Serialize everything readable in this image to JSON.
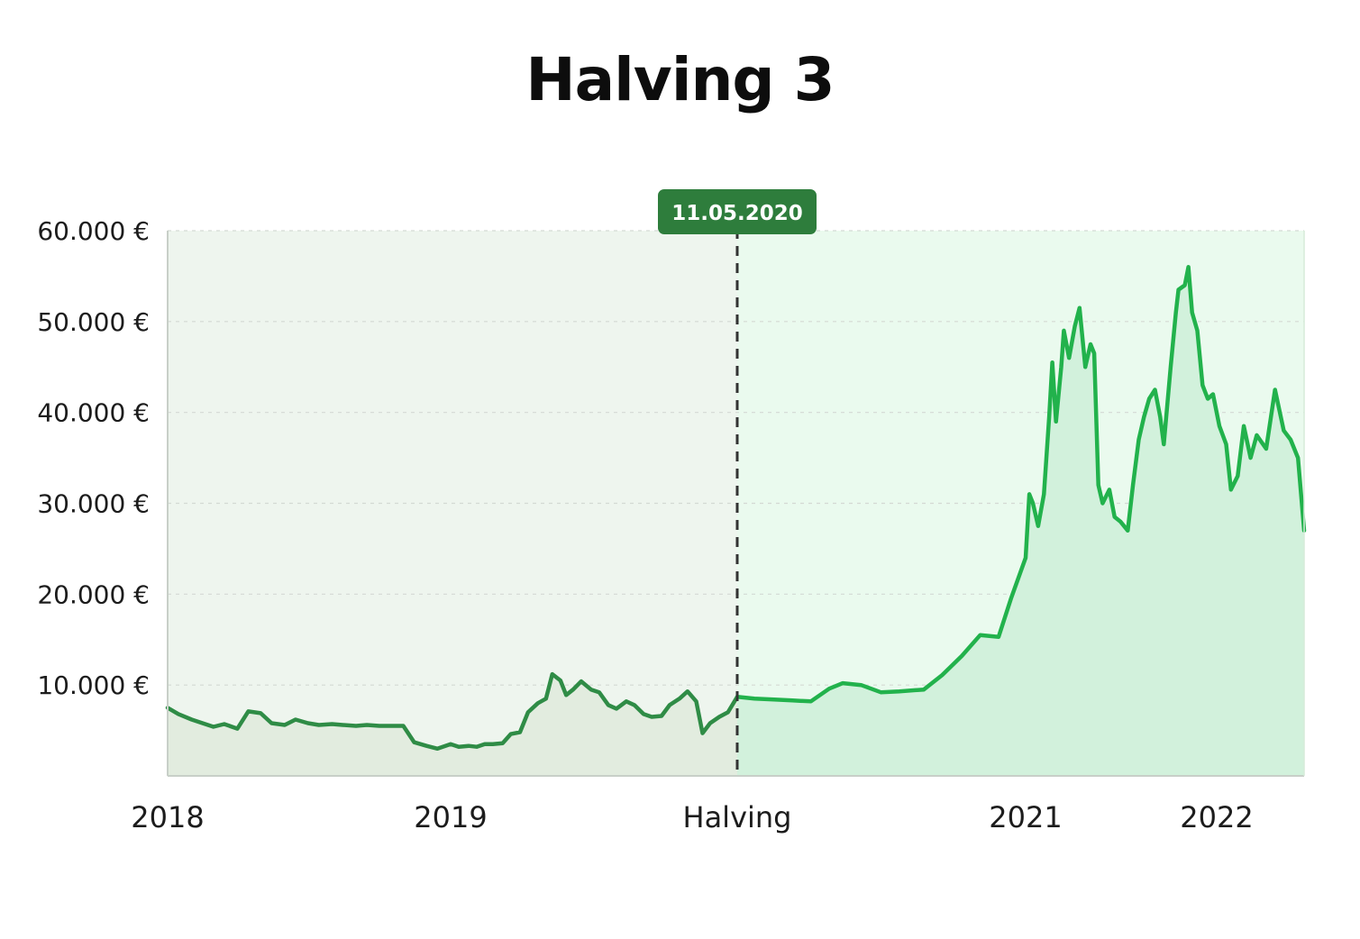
{
  "title": "Halving 3",
  "chart_data": {
    "type": "area",
    "title": "Halving 3",
    "xlabel": "",
    "ylabel": "",
    "ylim": [
      0,
      60000
    ],
    "y_ticks": [
      {
        "value": 10000,
        "label": "10.000 €"
      },
      {
        "value": 20000,
        "label": "20.000 €"
      },
      {
        "value": 30000,
        "label": "30.000 €"
      },
      {
        "value": 40000,
        "label": "40.000 €"
      },
      {
        "value": 50000,
        "label": "50.000 €"
      },
      {
        "value": 60000,
        "label": "60.000 €"
      }
    ],
    "x_ticks": [
      {
        "date": "2018-01-01",
        "label": "2018"
      },
      {
        "date": "2019-01-01",
        "label": "2019"
      },
      {
        "date": "2020-05-11",
        "label": "Halving"
      },
      {
        "date": "2021-01-01",
        "label": "2021"
      },
      {
        "date": "2022-01-01",
        "label": "2022"
      }
    ],
    "grid": true,
    "marker": {
      "date": "2020-05-11",
      "label": "11.05.2020"
    },
    "colors": {
      "before_line": "#2f8c46",
      "before_fill": "#e2ecdf",
      "before_bg": "#eef5ee",
      "after_line": "#22b24c",
      "after_fill": "#d2f1dc",
      "after_bg": "#eafaee",
      "marker_badge": "#2e7d3c",
      "grid": "#d4d9d4",
      "axis": "#c8cfc8"
    },
    "series": [
      {
        "values": [
          [
            "2018-01-01",
            7500
          ],
          [
            "2018-01-15",
            6800
          ],
          [
            "2018-02-01",
            6200
          ],
          [
            "2018-02-15",
            5800
          ],
          [
            "2018-03-01",
            5400
          ],
          [
            "2018-03-15",
            5700
          ],
          [
            "2018-04-01",
            5200
          ],
          [
            "2018-04-15",
            7100
          ],
          [
            "2018-05-01",
            6900
          ],
          [
            "2018-05-15",
            5800
          ],
          [
            "2018-06-01",
            5600
          ],
          [
            "2018-06-15",
            6200
          ],
          [
            "2018-07-01",
            5800
          ],
          [
            "2018-07-15",
            5600
          ],
          [
            "2018-08-01",
            5700
          ],
          [
            "2018-08-15",
            5600
          ],
          [
            "2018-09-01",
            5500
          ],
          [
            "2018-09-15",
            5600
          ],
          [
            "2018-10-01",
            5500
          ],
          [
            "2018-10-15",
            5500
          ],
          [
            "2018-11-01",
            5500
          ],
          [
            "2018-11-15",
            3700
          ],
          [
            "2018-12-01",
            3300
          ],
          [
            "2018-12-15",
            3000
          ],
          [
            "2019-01-01",
            3500
          ],
          [
            "2019-01-15",
            3200
          ],
          [
            "2019-02-01",
            3300
          ],
          [
            "2019-02-15",
            3200
          ],
          [
            "2019-03-01",
            3500
          ],
          [
            "2019-03-15",
            3500
          ],
          [
            "2019-04-01",
            3600
          ],
          [
            "2019-04-15",
            4600
          ],
          [
            "2019-05-01",
            4800
          ],
          [
            "2019-05-15",
            7000
          ],
          [
            "2019-06-01",
            8000
          ],
          [
            "2019-06-15",
            8500
          ],
          [
            "2019-06-26",
            11200
          ],
          [
            "2019-07-10",
            10500
          ],
          [
            "2019-07-20",
            8900
          ],
          [
            "2019-08-01",
            9500
          ],
          [
            "2019-08-15",
            10400
          ],
          [
            "2019-09-01",
            9500
          ],
          [
            "2019-09-15",
            9200
          ],
          [
            "2019-10-01",
            7800
          ],
          [
            "2019-10-15",
            7400
          ],
          [
            "2019-11-01",
            8200
          ],
          [
            "2019-11-15",
            7800
          ],
          [
            "2019-12-01",
            6800
          ],
          [
            "2019-12-15",
            6500
          ],
          [
            "2020-01-01",
            6600
          ],
          [
            "2020-01-15",
            7800
          ],
          [
            "2020-02-01",
            8500
          ],
          [
            "2020-02-15",
            9300
          ],
          [
            "2020-03-01",
            8200
          ],
          [
            "2020-03-12",
            4700
          ],
          [
            "2020-03-25",
            5800
          ],
          [
            "2020-04-10",
            6500
          ],
          [
            "2020-04-25",
            7000
          ],
          [
            "2020-05-11",
            8700
          ]
        ]
      },
      {
        "values": [
          [
            "2020-05-11",
            8700
          ],
          [
            "2020-05-25",
            8500
          ],
          [
            "2020-06-10",
            8400
          ],
          [
            "2020-06-25",
            8300
          ],
          [
            "2020-07-10",
            8200
          ],
          [
            "2020-07-25",
            9600
          ],
          [
            "2020-08-05",
            10200
          ],
          [
            "2020-08-20",
            10000
          ],
          [
            "2020-09-05",
            9200
          ],
          [
            "2020-09-20",
            9300
          ],
          [
            "2020-10-10",
            9500
          ],
          [
            "2020-10-25",
            11100
          ],
          [
            "2020-11-10",
            13200
          ],
          [
            "2020-11-25",
            15500
          ],
          [
            "2020-12-10",
            15300
          ],
          [
            "2020-12-20",
            19500
          ],
          [
            "2021-01-01",
            24000
          ],
          [
            "2021-01-08",
            31000
          ],
          [
            "2021-01-15",
            30000
          ],
          [
            "2021-01-25",
            27500
          ],
          [
            "2021-02-05",
            31000
          ],
          [
            "2021-02-15",
            39500
          ],
          [
            "2021-02-21",
            45500
          ],
          [
            "2021-02-28",
            39000
          ],
          [
            "2021-03-10",
            45000
          ],
          [
            "2021-03-15",
            49000
          ],
          [
            "2021-03-25",
            46000
          ],
          [
            "2021-04-05",
            49500
          ],
          [
            "2021-04-14",
            51500
          ],
          [
            "2021-04-25",
            45000
          ],
          [
            "2021-05-05",
            47500
          ],
          [
            "2021-05-12",
            46500
          ],
          [
            "2021-05-20",
            32000
          ],
          [
            "2021-05-28",
            30000
          ],
          [
            "2021-06-10",
            31500
          ],
          [
            "2021-06-20",
            28500
          ],
          [
            "2021-07-01",
            28000
          ],
          [
            "2021-07-15",
            27000
          ],
          [
            "2021-07-25",
            32000
          ],
          [
            "2021-08-05",
            37000
          ],
          [
            "2021-08-15",
            39500
          ],
          [
            "2021-08-25",
            41500
          ],
          [
            "2021-09-05",
            42500
          ],
          [
            "2021-09-15",
            39500
          ],
          [
            "2021-09-22",
            36500
          ],
          [
            "2021-10-05",
            45000
          ],
          [
            "2021-10-15",
            51000
          ],
          [
            "2021-10-20",
            53500
          ],
          [
            "2021-11-01",
            54000
          ],
          [
            "2021-11-08",
            56000
          ],
          [
            "2021-11-15",
            51000
          ],
          [
            "2021-11-25",
            49000
          ],
          [
            "2021-12-05",
            43000
          ],
          [
            "2021-12-15",
            41500
          ],
          [
            "2021-12-25",
            42000
          ],
          [
            "2022-01-05",
            38500
          ],
          [
            "2022-01-15",
            36500
          ],
          [
            "2022-01-22",
            31500
          ],
          [
            "2022-02-01",
            33000
          ],
          [
            "2022-02-10",
            38500
          ],
          [
            "2022-02-20",
            35000
          ],
          [
            "2022-03-01",
            37500
          ],
          [
            "2022-03-15",
            36000
          ],
          [
            "2022-03-28",
            42500
          ],
          [
            "2022-04-10",
            38000
          ],
          [
            "2022-04-20",
            37000
          ],
          [
            "2022-05-01",
            35000
          ],
          [
            "2022-05-10",
            27000
          ]
        ]
      }
    ]
  }
}
